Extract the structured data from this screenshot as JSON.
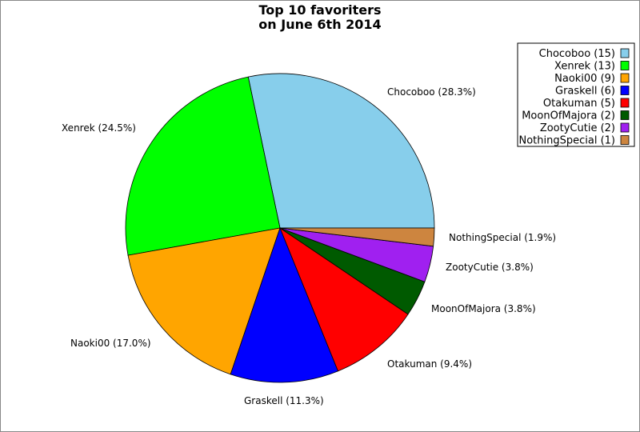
{
  "chart_data": {
    "type": "pie",
    "title": "Top 10 favoriters\non June 6th 2014",
    "slices": [
      {
        "name": "Chocoboo",
        "value": 15,
        "percent_label": "Chocoboo (28.3%)",
        "legend_label": "Chocoboo (15)",
        "color": "#87CEEB"
      },
      {
        "name": "Xenrek",
        "value": 13,
        "percent_label": "Xenrek (24.5%)",
        "legend_label": "Xenrek (13)",
        "color": "#00FF00"
      },
      {
        "name": "Naoki00",
        "value": 9,
        "percent_label": "Naoki00 (17.0%)",
        "legend_label": "Naoki00 (9)",
        "color": "#FFA500"
      },
      {
        "name": "Graskell",
        "value": 6,
        "percent_label": "Graskell (11.3%)",
        "legend_label": "Graskell (6)",
        "color": "#0000FF"
      },
      {
        "name": "Otakuman",
        "value": 5,
        "percent_label": "Otakuman (9.4%)",
        "legend_label": "Otakuman (5)",
        "color": "#FF0000"
      },
      {
        "name": "MoonOfMajora",
        "value": 2,
        "percent_label": "MoonOfMajora (3.8%)",
        "legend_label": "MoonOfMajora (2)",
        "color": "#005A00"
      },
      {
        "name": "ZootyCutie",
        "value": 2,
        "percent_label": "ZootyCutie (3.8%)",
        "legend_label": "ZootyCutie (2)",
        "color": "#A020F0"
      },
      {
        "name": "NothingSpecial",
        "value": 1,
        "percent_label": "NothingSpecial (1.9%)",
        "legend_label": "NothingSpecial (1)",
        "color": "#CD853F"
      }
    ],
    "legend_position": "top-right"
  }
}
